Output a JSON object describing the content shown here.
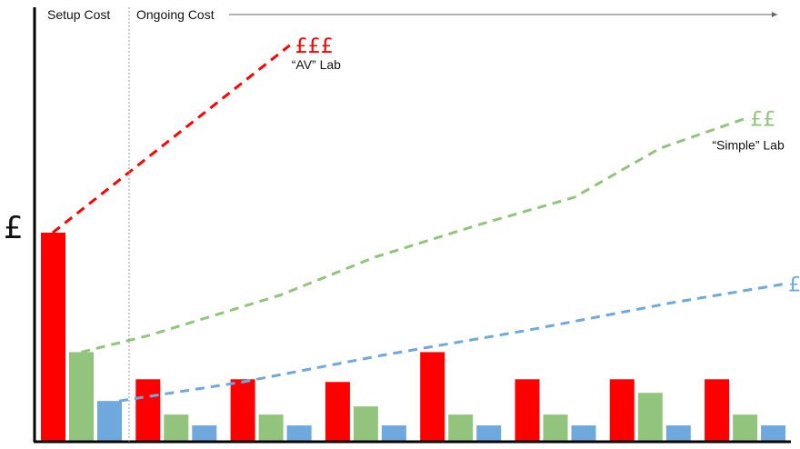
{
  "chart_data": {
    "type": "bar",
    "ylabel": "£",
    "phases": {
      "setup": "Setup Cost",
      "ongoing": "Ongoing Cost"
    },
    "groups": 8,
    "series": [
      {
        "color": "#ff0000",
        "values": [
          77,
          23,
          23,
          22,
          33,
          23,
          23,
          23
        ]
      },
      {
        "color": "#93c47d",
        "values": [
          33,
          10,
          10,
          13,
          10,
          10,
          18,
          10
        ]
      },
      {
        "color": "#6fa8dc",
        "values": [
          15,
          6,
          6,
          6,
          6,
          6,
          6,
          6
        ]
      }
    ],
    "ylim": [
      0,
      160
    ],
    "trend_lines": [
      {
        "color": "#ff0000",
        "symbol": "£££",
        "label": "“AV” Lab",
        "points": [
          [
            0.0,
            77
          ],
          [
            2.5,
            146
          ]
        ]
      },
      {
        "color": "#93c47d",
        "symbol": "££",
        "label": "“Simple” Lab",
        "points": [
          [
            0.3,
            33
          ],
          [
            1.0,
            39
          ],
          [
            2.4,
            54
          ],
          [
            3.4,
            68
          ],
          [
            4.5,
            80
          ],
          [
            5.5,
            90
          ],
          [
            6.4,
            108
          ],
          [
            7.3,
            119
          ]
        ]
      },
      {
        "color": "#6fa8dc",
        "symbol": "£",
        "label": "",
        "points": [
          [
            0.7,
            15
          ],
          [
            2.0,
            22
          ],
          [
            3.5,
            32
          ],
          [
            5.0,
            41
          ],
          [
            6.5,
            51
          ],
          [
            7.7,
            58
          ]
        ]
      }
    ]
  }
}
